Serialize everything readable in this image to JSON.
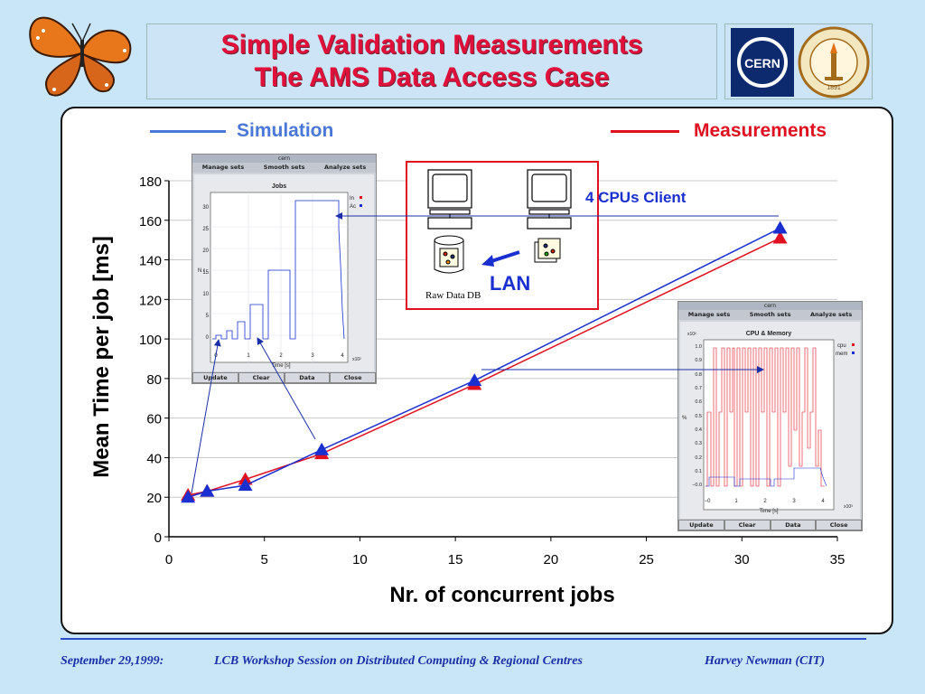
{
  "header": {
    "title_line1": "Simple Validation Measurements",
    "title_line2": "The AMS Data Access Case",
    "logo_left_text": "CERN",
    "logo_right_text": "CALIFORNIA INSTITUTE OF TECHNOLOGY",
    "logo_right_year": "1891"
  },
  "legend": {
    "simulation_label": "Simulation",
    "measurements_label": "Measurements",
    "simulation_color": "#4a78d8",
    "measurements_color": "#e01020"
  },
  "diagram": {
    "client_label": "4 CPUs Client",
    "lan_label": "LAN",
    "rawdata_label": "Raw Data",
    "db_label": "DB"
  },
  "jobs_window": {
    "title": "cern",
    "menu": [
      "Manage sets",
      "Smooth sets",
      "Analyze sets"
    ],
    "plot_title": "Jobs",
    "legend": [
      "In",
      "Ac"
    ],
    "y_label": "N r",
    "x_label": "Time [s]",
    "x_exp": "x10²",
    "x_ticks": [
      "0",
      "1",
      "2",
      "3",
      "4"
    ],
    "y_ticks": [
      "0",
      "5",
      "10",
      "15",
      "20",
      "25",
      "30"
    ],
    "buttons": [
      "Update",
      "Clear",
      "Data",
      "Close"
    ]
  },
  "cpu_window": {
    "title": "cern",
    "menu": [
      "Manage sets",
      "Smooth sets",
      "Analyze sets"
    ],
    "plot_title": "CPU & Memory",
    "legend": [
      "cpu",
      "mem"
    ],
    "y_label": "%",
    "y_exp": "x10²",
    "x_label": "Time [s]",
    "x_exp": "x10³",
    "x_ticks": [
      "−0",
      "1",
      "2",
      "3",
      "4"
    ],
    "y_ticks": [
      "−0.0",
      "0.1",
      "0.2",
      "0.3",
      "0.4",
      "0.5",
      "0.6",
      "0.7",
      "0.8",
      "0.9",
      "1.0"
    ],
    "buttons": [
      "Update",
      "Clear",
      "Data",
      "Close"
    ]
  },
  "footer": {
    "date": "September 29,1999:",
    "event": "LCB Workshop Session on Distributed Computing  & Regional Centres",
    "author": "Harvey Newman (CIT)"
  },
  "chart_data": {
    "type": "line",
    "title": "",
    "xlabel": "Nr. of concurrent jobs",
    "ylabel": "Mean Time per job [ms]",
    "xlim": [
      0,
      35
    ],
    "ylim": [
      0,
      180
    ],
    "x_ticks": [
      0,
      5,
      10,
      15,
      20,
      25,
      30,
      35
    ],
    "y_ticks": [
      0,
      20,
      40,
      60,
      80,
      100,
      120,
      140,
      160,
      180
    ],
    "grid": true,
    "series": [
      {
        "name": "Simulation",
        "color": "#1a2fd0",
        "marker": "triangle",
        "x": [
          1,
          2,
          4,
          8,
          16,
          32
        ],
        "y": [
          20,
          23,
          26,
          44,
          79,
          156
        ]
      },
      {
        "name": "Measurements",
        "color": "#e01020",
        "marker": "triangle",
        "x": [
          1,
          2,
          4,
          8,
          16,
          32
        ],
        "y": [
          21,
          23,
          29,
          42,
          77,
          151
        ]
      }
    ]
  }
}
